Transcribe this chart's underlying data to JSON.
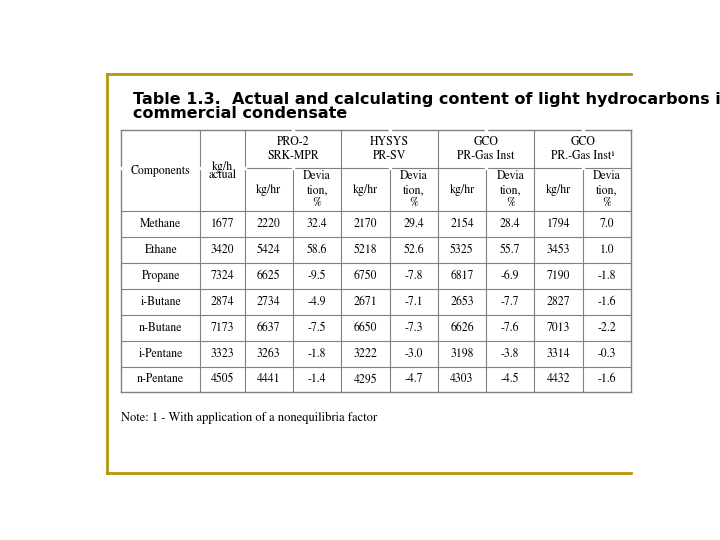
{
  "title_line1": "Table 1.3.  Actual and calculating content of light hydrocarbons in",
  "title_line2": "commercial condensate",
  "note": "Note: 1 - With application of a nonequilibria factor",
  "components": [
    "Methane",
    "Ethane",
    "Propane",
    "i-Butane",
    "n-Butane",
    "i-Pentane",
    "n-Pentane"
  ],
  "kg_h_actual": [
    "1677",
    "3420",
    "7324",
    "2874",
    "7173",
    "3323",
    "4505"
  ],
  "pro2_kghr": [
    "2220",
    "5424",
    "6625",
    "2734",
    "6637",
    "3263",
    "4441"
  ],
  "pro2_dev": [
    "32.4",
    "58.6",
    "-9.5",
    "-4.9",
    "-7.5",
    "-1.8",
    "-1.4"
  ],
  "hysys_kghr": [
    "2170",
    "5218",
    "6750",
    "2671",
    "6650",
    "3222",
    "4295"
  ],
  "hysys_dev": [
    "29.4",
    "52.6",
    "-7.8",
    "-7.1",
    "-7.3",
    "-3.0",
    "-4.7"
  ],
  "gco_kghr": [
    "2154",
    "5325",
    "6817",
    "2653",
    "6626",
    "3198",
    "4303"
  ],
  "gco_dev": [
    "28.4",
    "55.7",
    "-6.9",
    "-7.7",
    "-7.6",
    "-3.8",
    "-4.5"
  ],
  "gcoinst_kghr": [
    "1794",
    "3453",
    "7190",
    "2827",
    "7013",
    "3314",
    "4432"
  ],
  "gcoinst_dev": [
    "7.0",
    "1.0",
    "-1.8",
    "-1.6",
    "-2.2",
    "-0.3",
    "-1.6"
  ],
  "bg_color": "#ffffff",
  "border_color": "#b8960c",
  "table_line_color": "#808080",
  "title_color": "#000000",
  "data_font_size": 8.5,
  "header_font_size": 8.5,
  "title_font_size": 11.5,
  "note_font_size": 9.0
}
